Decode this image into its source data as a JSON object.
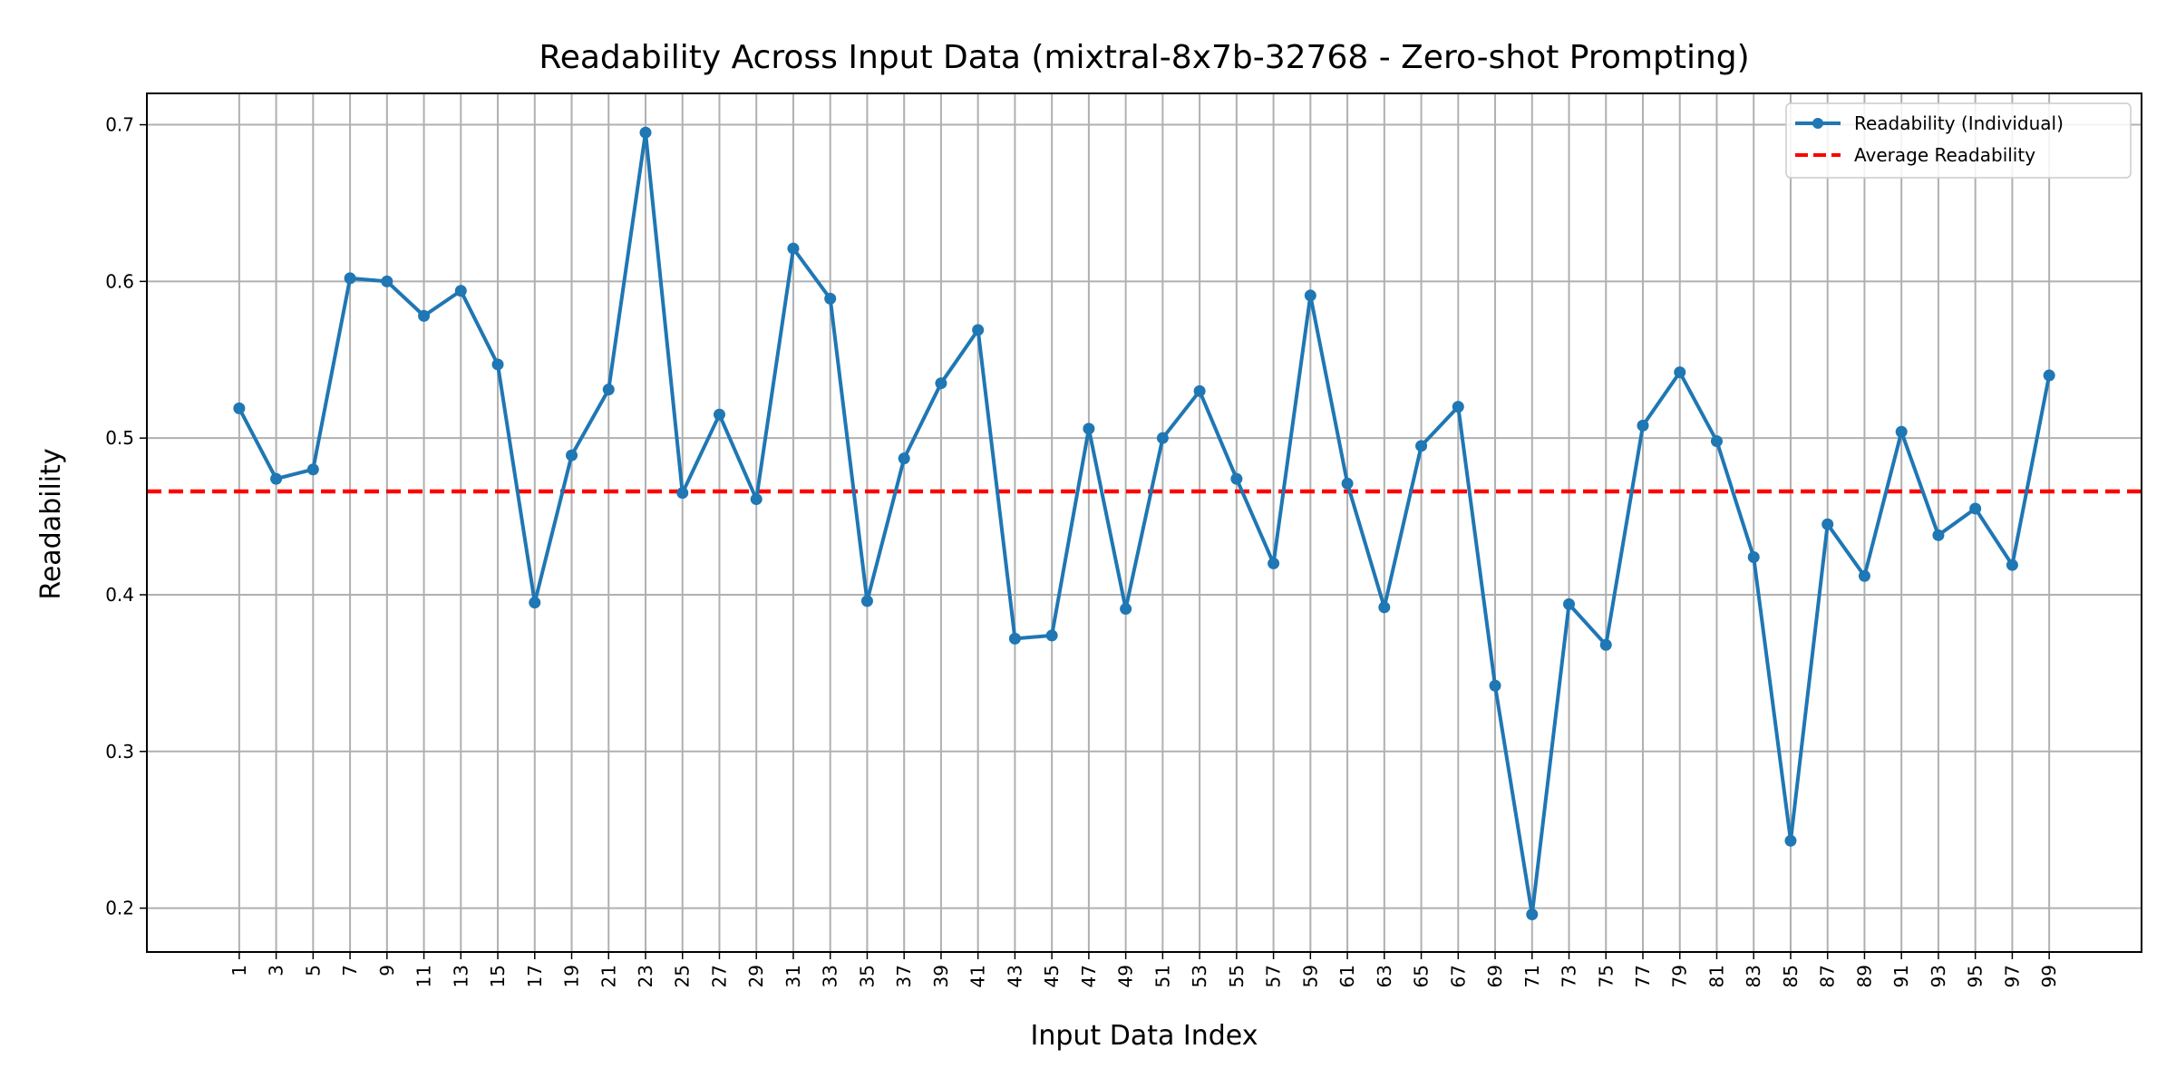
{
  "chart_data": {
    "type": "line",
    "title": "Readability Across Input Data (mixtral-8x7b-32768 - Zero-shot Prompting)",
    "xlabel": "Input Data Index",
    "ylabel": "Readability",
    "x": [
      1,
      3,
      5,
      7,
      9,
      11,
      13,
      15,
      17,
      19,
      21,
      23,
      25,
      27,
      29,
      31,
      33,
      35,
      37,
      39,
      41,
      43,
      45,
      47,
      49,
      51,
      53,
      55,
      57,
      59,
      61,
      63,
      65,
      67,
      69,
      71,
      73,
      75,
      77,
      79,
      81,
      83,
      85,
      87,
      89,
      91,
      93,
      95,
      97,
      99
    ],
    "x_tick_labels": [
      "1",
      "3",
      "5",
      "7",
      "9",
      "11",
      "13",
      "15",
      "17",
      "19",
      "21",
      "23",
      "25",
      "27",
      "29",
      "31",
      "33",
      "35",
      "37",
      "39",
      "41",
      "43",
      "45",
      "47",
      "49",
      "51",
      "53",
      "55",
      "57",
      "59",
      "61",
      "63",
      "65",
      "67",
      "69",
      "71",
      "73",
      "75",
      "77",
      "79",
      "81",
      "83",
      "85",
      "87",
      "89",
      "91",
      "93",
      "95",
      "97",
      "99"
    ],
    "xlim": [
      -4,
      104
    ],
    "ylim": [
      0.172,
      0.72
    ],
    "y_ticks": [
      0.2,
      0.3,
      0.4,
      0.5,
      0.6,
      0.7
    ],
    "y_tick_labels": [
      "0.2",
      "0.3",
      "0.4",
      "0.5",
      "0.6",
      "0.7"
    ],
    "grid": true,
    "legend_position": "top-right",
    "series": [
      {
        "name": "Readability (Individual)",
        "color": "#1f77b4",
        "style": "solid-with-markers",
        "values": [
          0.519,
          0.474,
          0.48,
          0.602,
          0.6,
          0.578,
          0.594,
          0.547,
          0.395,
          0.489,
          0.531,
          0.695,
          0.465,
          0.515,
          0.461,
          0.621,
          0.589,
          0.396,
          0.487,
          0.535,
          0.569,
          0.372,
          0.374,
          0.506,
          0.391,
          0.5,
          0.53,
          0.474,
          0.42,
          0.591,
          0.471,
          0.392,
          0.495,
          0.52,
          0.342,
          0.196,
          0.394,
          0.368,
          0.508,
          0.542,
          0.498,
          0.424,
          0.243,
          0.445,
          0.412,
          0.504,
          0.438,
          0.455,
          0.419,
          0.54
        ]
      },
      {
        "name": "Average Readability",
        "color": "#ff0000",
        "style": "dashed",
        "value": 0.466
      }
    ]
  }
}
